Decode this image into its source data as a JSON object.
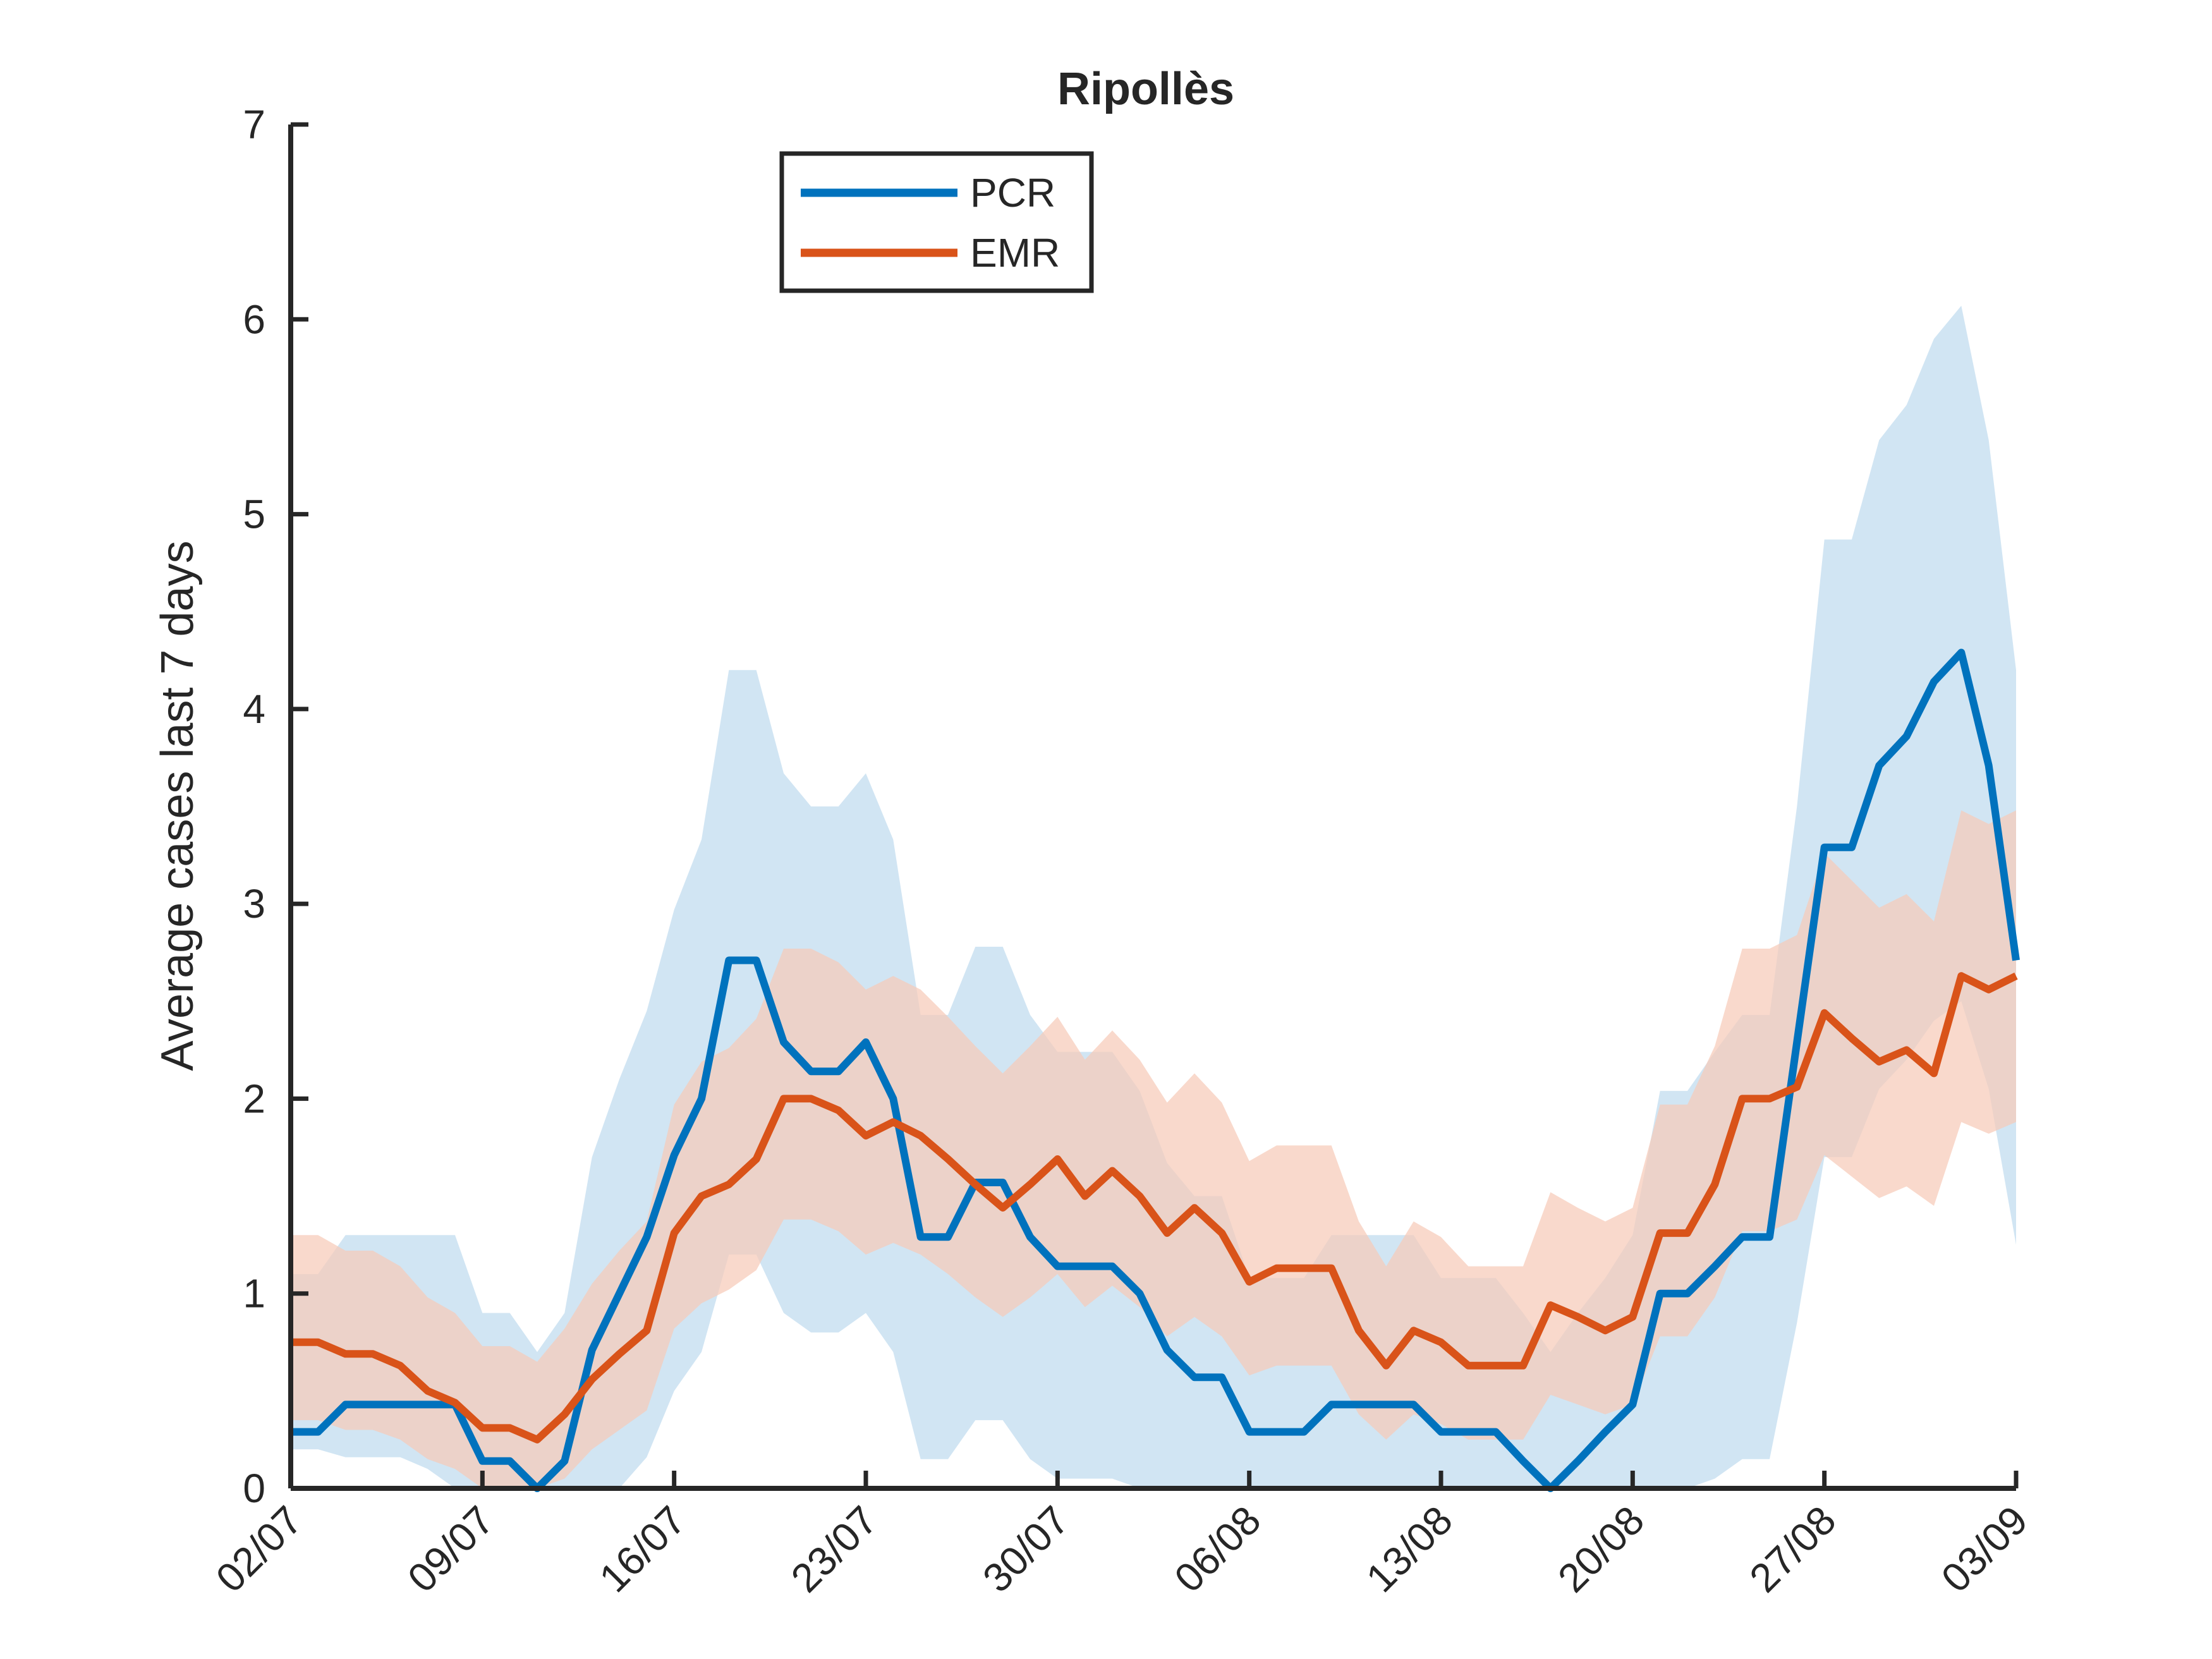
{
  "chart_data": {
    "type": "line",
    "title": "Ripollès",
    "xlabel": "",
    "ylabel": "Average cases last 7 days",
    "ylim": [
      0,
      7
    ],
    "yticks": [
      "0",
      "1",
      "2",
      "3",
      "4",
      "5",
      "6",
      "7"
    ],
    "xticks": [
      "02/07",
      "09/07",
      "16/07",
      "23/07",
      "30/07",
      "06/08",
      "13/08",
      "20/08",
      "27/08",
      "03/09"
    ],
    "legend_position": "top-left",
    "grid": false,
    "series": [
      {
        "name": "PCR",
        "color": "#0072BD",
        "band_color": "#bfdbee",
        "values": [
          0.29,
          0.29,
          0.43,
          0.43,
          0.43,
          0.43,
          0.43,
          0.14,
          0.14,
          0.0,
          0.14,
          0.71,
          1.0,
          1.29,
          1.71,
          2.0,
          2.71,
          2.71,
          2.29,
          2.14,
          2.14,
          2.29,
          2.0,
          1.29,
          1.29,
          1.57,
          1.57,
          1.29,
          1.14,
          1.14,
          1.14,
          1.0,
          0.71,
          0.57,
          0.57,
          0.29,
          0.29,
          0.29,
          0.43,
          0.43,
          0.43,
          0.43,
          0.29,
          0.29,
          0.29,
          0.14,
          0.0,
          0.14,
          0.29,
          0.43,
          1.0,
          1.0,
          1.14,
          1.29,
          1.29,
          2.29,
          3.29,
          3.29,
          3.71,
          3.86,
          4.14,
          4.29,
          3.71,
          2.71
        ],
        "upper": [
          1.1,
          1.1,
          1.3,
          1.3,
          1.3,
          1.3,
          1.3,
          0.9,
          0.9,
          0.7,
          0.9,
          1.7,
          2.1,
          2.45,
          2.97,
          3.33,
          4.2,
          4.2,
          3.67,
          3.5,
          3.5,
          3.67,
          3.33,
          2.43,
          2.43,
          2.78,
          2.78,
          2.43,
          2.24,
          2.24,
          2.24,
          2.04,
          1.67,
          1.5,
          1.5,
          1.08,
          1.08,
          1.08,
          1.3,
          1.3,
          1.3,
          1.3,
          1.08,
          1.08,
          1.08,
          0.9,
          0.7,
          0.9,
          1.08,
          1.3,
          2.04,
          2.04,
          2.24,
          2.43,
          2.43,
          3.5,
          4.87,
          4.87,
          5.38,
          5.56,
          5.9,
          6.07,
          5.38,
          4.2
        ],
        "lower": [
          0.2,
          0.2,
          0.16,
          0.16,
          0.16,
          0.1,
          0.0,
          0.0,
          0.0,
          0.0,
          0.0,
          0.0,
          0.0,
          0.16,
          0.5,
          0.7,
          1.2,
          1.2,
          0.9,
          0.8,
          0.8,
          0.9,
          0.7,
          0.15,
          0.15,
          0.35,
          0.35,
          0.15,
          0.05,
          0.05,
          0.05,
          0.0,
          0.0,
          0.0,
          0.0,
          0.0,
          0.0,
          0.0,
          0.0,
          0.0,
          0.0,
          0.0,
          0.0,
          0.0,
          0.0,
          0.0,
          0.0,
          0.0,
          0.0,
          0.0,
          0.0,
          0.0,
          0.05,
          0.15,
          0.15,
          0.85,
          1.7,
          1.7,
          2.05,
          2.2,
          2.4,
          2.5,
          2.05,
          1.25
        ]
      },
      {
        "name": "EMR",
        "color": "#D95319",
        "band_color": "#f6cbb8",
        "values": [
          0.75,
          0.75,
          0.69,
          0.69,
          0.63,
          0.5,
          0.44,
          0.31,
          0.31,
          0.25,
          0.38,
          0.56,
          0.69,
          0.81,
          1.31,
          1.5,
          1.56,
          1.69,
          2.0,
          2.0,
          1.94,
          1.81,
          1.88,
          1.81,
          1.69,
          1.56,
          1.44,
          1.56,
          1.69,
          1.5,
          1.63,
          1.5,
          1.31,
          1.44,
          1.31,
          1.06,
          1.13,
          1.13,
          1.13,
          0.81,
          0.63,
          0.81,
          0.75,
          0.63,
          0.63,
          0.63,
          0.94,
          0.88,
          0.81,
          0.88,
          1.31,
          1.31,
          1.56,
          2.0,
          2.0,
          2.06,
          2.44,
          2.31,
          2.19,
          2.25,
          2.13,
          2.63,
          2.56,
          2.63
        ],
        "upper": [
          1.3,
          1.3,
          1.22,
          1.22,
          1.14,
          0.98,
          0.9,
          0.73,
          0.73,
          0.65,
          0.82,
          1.05,
          1.22,
          1.37,
          1.97,
          2.19,
          2.26,
          2.41,
          2.77,
          2.77,
          2.7,
          2.56,
          2.63,
          2.56,
          2.42,
          2.27,
          2.13,
          2.27,
          2.42,
          2.2,
          2.35,
          2.2,
          1.98,
          2.13,
          1.98,
          1.68,
          1.76,
          1.76,
          1.76,
          1.37,
          1.14,
          1.37,
          1.29,
          1.14,
          1.14,
          1.14,
          1.52,
          1.44,
          1.37,
          1.44,
          1.97,
          1.97,
          2.27,
          2.77,
          2.77,
          2.84,
          3.26,
          3.12,
          2.98,
          3.05,
          2.91,
          3.48,
          3.41,
          3.48
        ],
        "lower": [
          0.35,
          0.35,
          0.3,
          0.3,
          0.25,
          0.15,
          0.1,
          0.0,
          0.0,
          0.0,
          0.05,
          0.2,
          0.3,
          0.4,
          0.82,
          0.95,
          1.02,
          1.12,
          1.38,
          1.38,
          1.32,
          1.2,
          1.26,
          1.2,
          1.1,
          0.98,
          0.88,
          0.98,
          1.1,
          0.93,
          1.04,
          0.93,
          0.78,
          0.88,
          0.78,
          0.58,
          0.63,
          0.63,
          0.63,
          0.38,
          0.25,
          0.38,
          0.33,
          0.25,
          0.25,
          0.25,
          0.48,
          0.43,
          0.38,
          0.43,
          0.78,
          0.78,
          0.98,
          1.32,
          1.32,
          1.38,
          1.71,
          1.6,
          1.49,
          1.55,
          1.45,
          1.88,
          1.82,
          1.88
        ]
      }
    ]
  }
}
